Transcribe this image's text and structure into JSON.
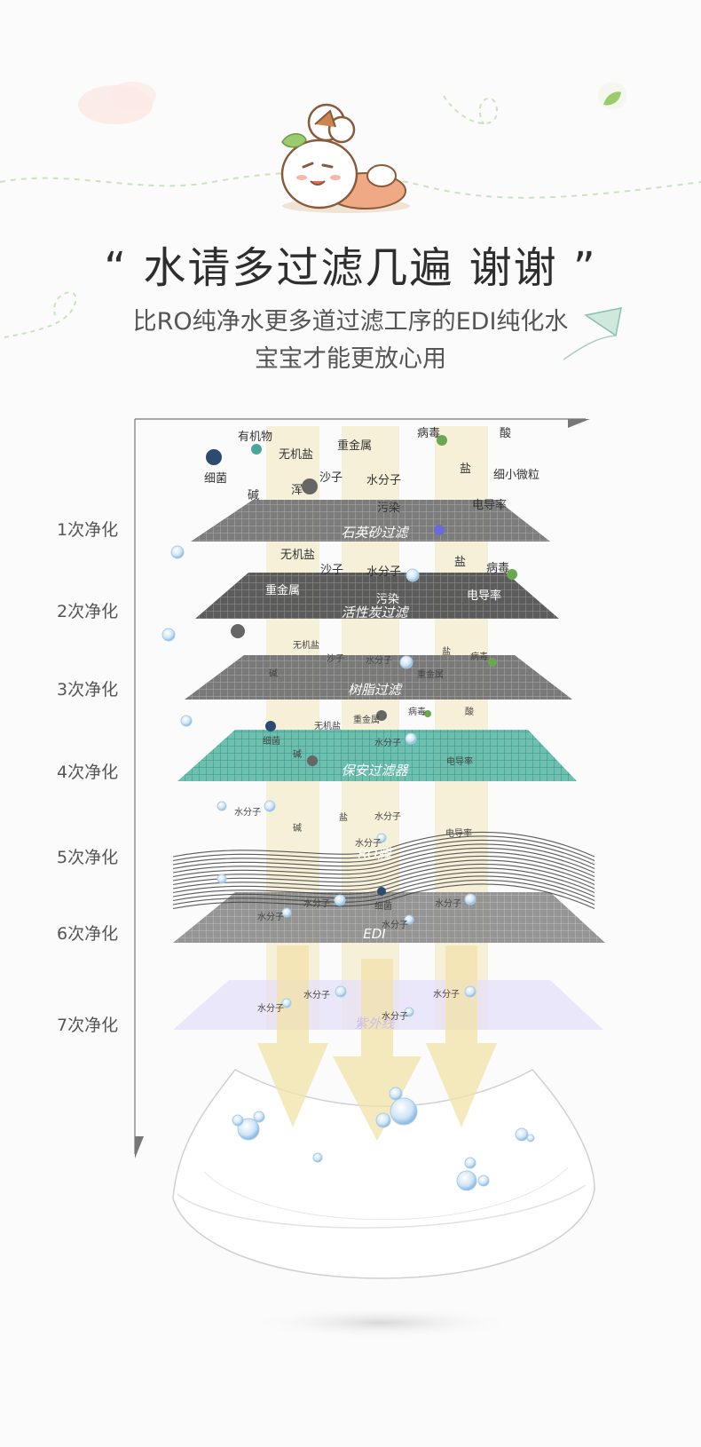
{
  "header": {
    "title": "“ 水请多过滤几遍 谢谢 ”",
    "subtitle_line1": "比RO纯净水更多道过滤工序的EDI纯化水",
    "subtitle_line2": "宝宝才能更放心用"
  },
  "stages": [
    {
      "label": "1次净化",
      "layer": "石英砂过滤"
    },
    {
      "label": "2次净化",
      "layer": "活性炭过滤"
    },
    {
      "label": "3次净化",
      "layer": "树脂过滤"
    },
    {
      "label": "4次净化",
      "layer": "保安过滤器"
    },
    {
      "label": "5次净化",
      "layer": "RO膜"
    },
    {
      "label": "6次净化",
      "layer": "EDI"
    },
    {
      "label": "7次净化",
      "layer": "紫外线"
    }
  ],
  "impurities": {
    "stage1_top": [
      "有机物",
      "无机盐",
      "重金属",
      "病毒",
      "酸",
      "细菌",
      "浑",
      "沙子",
      "水分子",
      "盐",
      "细小微粒",
      "碱",
      "污染",
      "电导率"
    ],
    "stage2_top": [
      "无机盐",
      "沙子",
      "水分子",
      "盐",
      "病毒",
      "重金属",
      "污染",
      "电导率"
    ],
    "stage3_top": [
      "无机盐",
      "沙子",
      "水分子",
      "盐",
      "病毒",
      "碱",
      "重金属"
    ],
    "stage4_top": [
      "重金属",
      "病毒",
      "酸",
      "无机盐",
      "细菌",
      "水分子",
      "碱",
      "电导率"
    ],
    "stage5_top": [
      "水分子",
      "盐",
      "水分子",
      "碱",
      "电导率",
      "水分子"
    ],
    "stage6_top": [
      "水分子",
      "细菌",
      "水分子",
      "水分子",
      "水分子"
    ],
    "stage7_top": [
      "水分子",
      "水分子",
      "水分子",
      "水分子"
    ]
  },
  "colors": {
    "beam": "#f3e7bd",
    "quartz": "#6f6f6f",
    "carbon": "#4a4a4a",
    "resin": "#6b6b6b",
    "security": "#5fb8a8",
    "edi": "#8a8a8a",
    "uv": "#e4defa",
    "bubble": "#a8cde8"
  }
}
